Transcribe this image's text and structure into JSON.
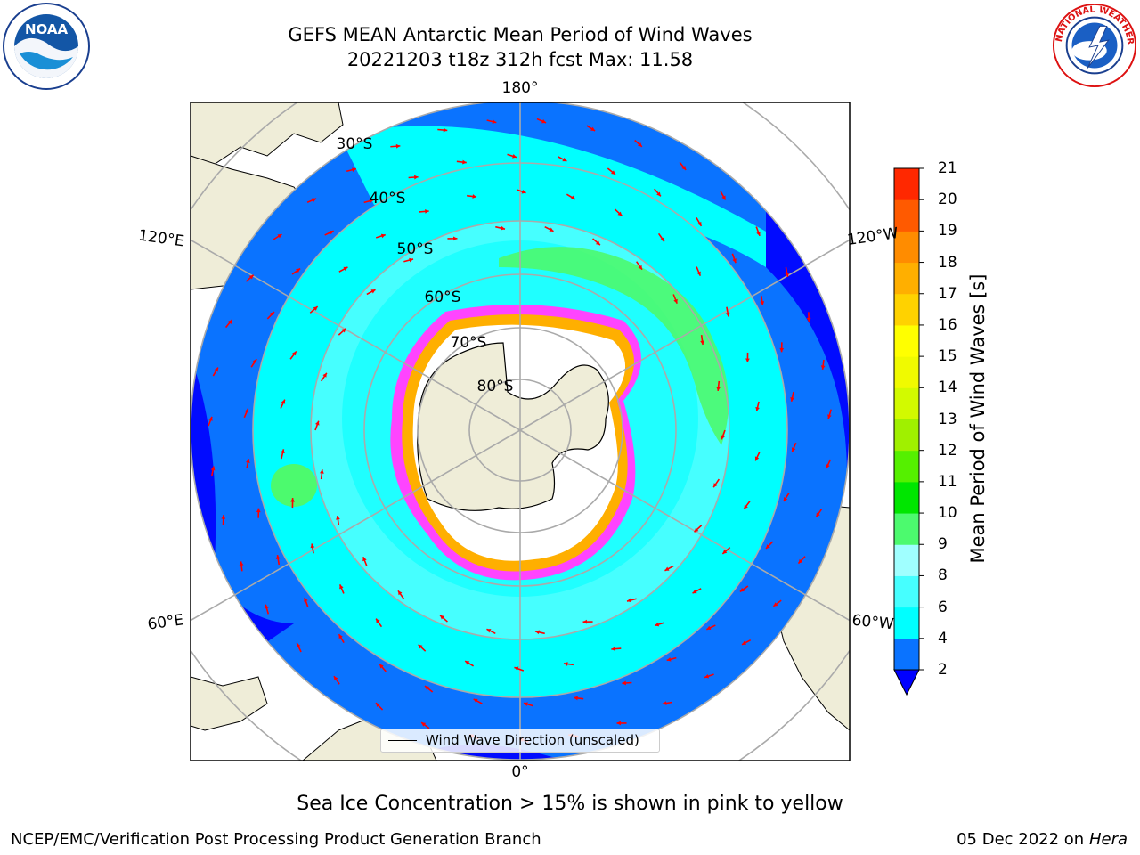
{
  "title_line1": "GEFS MEAN Antarctic Mean Period of Wind Waves",
  "title_line2": "20221203 t18z 312h fcst   Max: 11.58",
  "caption": "Sea Ice Concentration > 15% is shown in pink to yellow",
  "footer_left": "NCEP/EMC/Verification Post Processing Product Generation Branch",
  "footer_right_date": "05 Dec 2022 on",
  "footer_right_host": "Hera",
  "legend": {
    "label": "Wind Wave Direction (unscaled)",
    "line_color": "#000000"
  },
  "colorbar": {
    "label": "Mean Period of Wind Waves [s]",
    "ticks": [
      "2",
      "4",
      "6",
      "8",
      "9",
      "10",
      "11",
      "12",
      "13",
      "14",
      "15",
      "16",
      "17",
      "18",
      "19",
      "20",
      "21"
    ],
    "bounds": [
      2,
      4,
      6,
      8,
      9,
      10,
      11,
      12,
      13,
      14,
      15,
      16,
      17,
      18,
      19,
      20,
      21
    ],
    "colors": [
      "#0a73ff",
      "#00ffff",
      "#46ffff",
      "#a0ffff",
      "#4cfa6e",
      "#00e600",
      "#55f000",
      "#a0f000",
      "#d2fa00",
      "#f0fa00",
      "#ffff00",
      "#ffd200",
      "#ffaf00",
      "#ff8c00",
      "#ff5a00",
      "#ff2800",
      "#ff0000"
    ],
    "underflow_color": "#0000ff"
  },
  "map": {
    "projection": "south-polar-stereographic",
    "longitude_labels": [
      "180°",
      "120°E",
      "120°W",
      "60°E",
      "60°W",
      "0°"
    ],
    "latitude_labels": [
      "30°S",
      "40°S",
      "50°S",
      "60°S",
      "70°S",
      "80°S"
    ],
    "ocean_colors": {
      "deep_blue": "#0000ff",
      "blue": "#0a73ff",
      "cyan": "#00ffff",
      "light_cyan": "#46ffff",
      "green": "#4cfa6e"
    },
    "land_color": "#efedd8",
    "ice_colors": [
      "#ff44ff",
      "#ffaf00",
      "#ffff66",
      "#ffffff"
    ],
    "arrow_color": "#ff0000",
    "grid_color": "#aaaaaa"
  },
  "logos": {
    "noaa": "NOAA",
    "nws": "NATIONAL WEATHER SERVICE"
  }
}
